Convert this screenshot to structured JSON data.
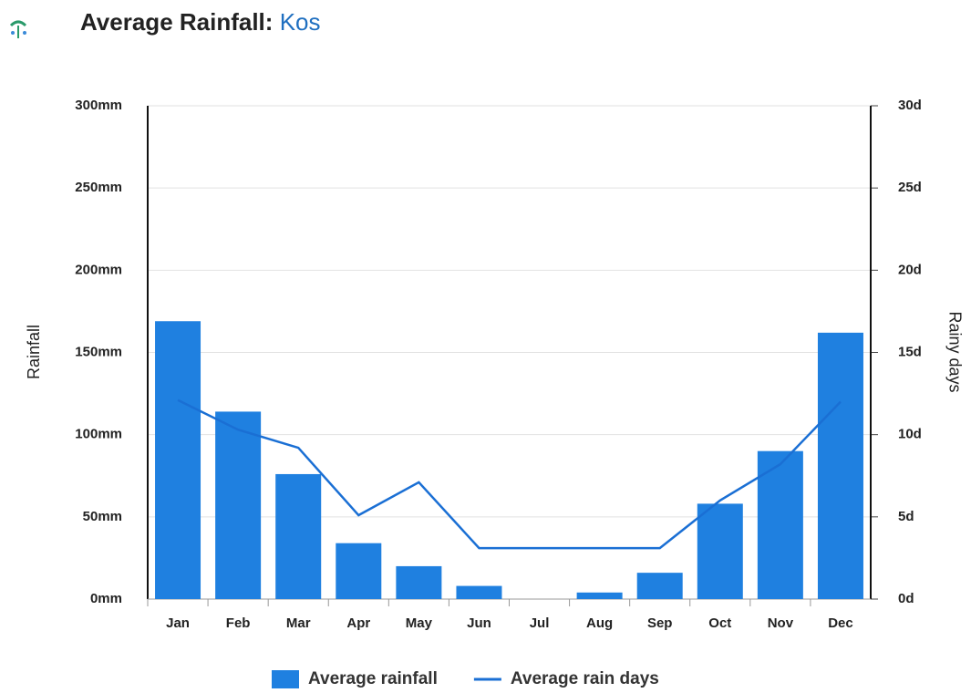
{
  "chart_data": {
    "type": "bar-line",
    "title": "Average Rainfall:",
    "location": "Kos",
    "y_label": "Rainfall",
    "y2_label": "Rainy days",
    "categories": [
      "Jan",
      "Feb",
      "Mar",
      "Apr",
      "May",
      "Jun",
      "Jul",
      "Aug",
      "Sep",
      "Oct",
      "Nov",
      "Dec"
    ],
    "series": [
      {
        "name": "Average rainfall",
        "type": "bar",
        "color": "#1f80e0",
        "values": [
          169,
          114,
          76,
          34,
          20,
          8,
          0,
          4,
          16,
          58,
          90,
          162
        ]
      },
      {
        "name": "Average rain days",
        "type": "line",
        "axis": "y2",
        "color": "#1a6fd4",
        "values": [
          12.1,
          10.3,
          9.2,
          5.1,
          7.1,
          3.1,
          3.1,
          3.1,
          3.1,
          6.0,
          8.2,
          12.0
        ]
      }
    ],
    "ylim": [
      0,
      300
    ],
    "yticks": [
      {
        "value": 0,
        "label": "0mm"
      },
      {
        "value": 50,
        "label": "50mm"
      },
      {
        "value": 100,
        "label": "100mm"
      },
      {
        "value": 150,
        "label": "150mm"
      },
      {
        "value": 200,
        "label": "200mm"
      },
      {
        "value": 250,
        "label": "250mm"
      },
      {
        "value": 300,
        "label": "300mm"
      }
    ],
    "y2lim": [
      0,
      30
    ],
    "y2ticks": [
      {
        "value": 0,
        "label": "0d"
      },
      {
        "value": 5,
        "label": "5d"
      },
      {
        "value": 10,
        "label": "10d"
      },
      {
        "value": 15,
        "label": "15d"
      },
      {
        "value": 20,
        "label": "20d"
      },
      {
        "value": 25,
        "label": "25d"
      },
      {
        "value": 30,
        "label": "30d"
      }
    ],
    "grid": true,
    "legend": "bottom"
  }
}
